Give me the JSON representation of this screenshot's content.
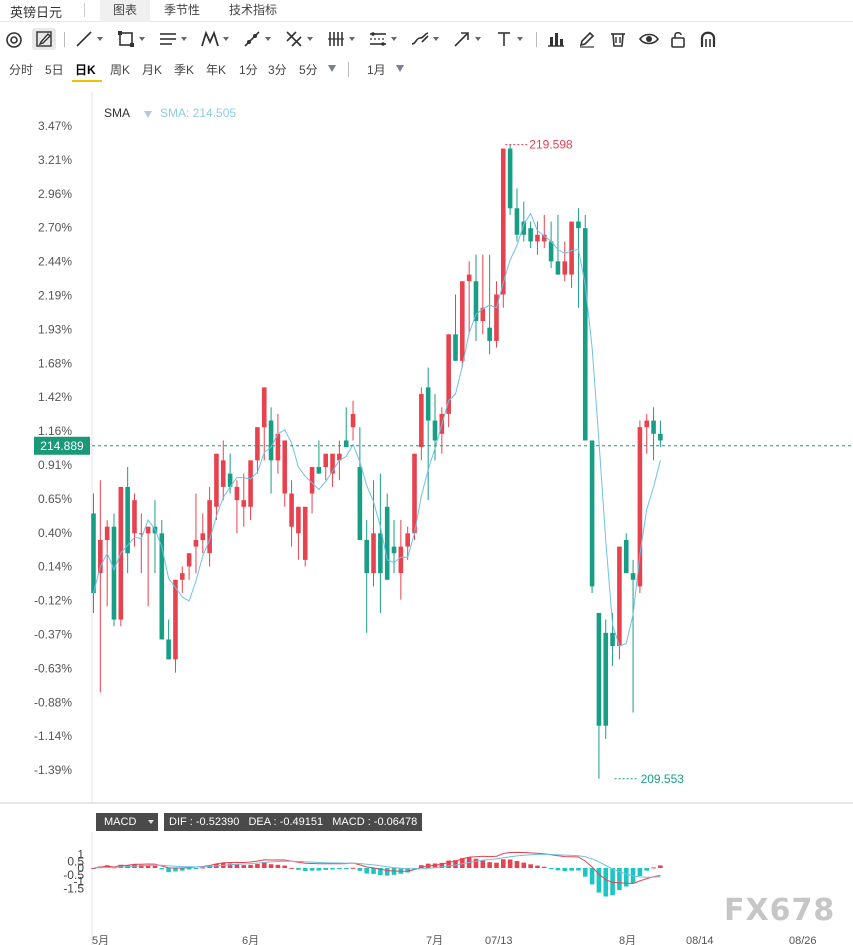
{
  "header": {
    "title": "英镑日元",
    "tabs": [
      "图表",
      "季节性",
      "技术指标"
    ],
    "active_tab": 0
  },
  "toolbar": {
    "icons": [
      "circle-tool-icon",
      "pen-icon",
      "line-icon",
      "rect-icon",
      "hlines-icon",
      "pattern-icon",
      "trendline-icon",
      "cross-icon",
      "vbars-icon",
      "channel-icon",
      "brush-icon",
      "arrow-icon",
      "text-icon",
      "barchart-icon",
      "pencil-icon",
      "trash-icon",
      "eye-icon",
      "lock-icon",
      "magnet-icon"
    ]
  },
  "periods": {
    "items": [
      "分时",
      "5日",
      "日K",
      "周K",
      "月K",
      "季K",
      "年K",
      "1分",
      "3分",
      "5分"
    ],
    "active": 2,
    "range": "1月"
  },
  "indicator": {
    "name": "SMA",
    "value_label": "SMA: 214.505"
  },
  "price_label": "214.889",
  "macd": {
    "select_label": "MACD",
    "values": "DIF : -0.52390   DEA : -0.49151   MACD : -0.06478"
  },
  "watermark": "FX678",
  "colors": {
    "up": "#e8424f",
    "down": "#199e86",
    "sma": "#6ec1e6",
    "dif": "#e8424f",
    "dea": "#6ec1e6",
    "price_tag": "#1a9978"
  },
  "chart_data": {
    "type": "candlestick",
    "y_axis_labels": [
      "3.47%",
      "3.21%",
      "2.96%",
      "2.70%",
      "2.44%",
      "2.19%",
      "1.93%",
      "1.68%",
      "1.42%",
      "1.16%",
      "0.91%",
      "0.65%",
      "0.40%",
      "0.14%",
      "-0.12%",
      "-0.37%",
      "-0.63%",
      "-0.88%",
      "-1.14%",
      "-1.39%"
    ],
    "x_axis_labels": [
      "5月",
      "6月",
      "7月",
      "07/13",
      "8月",
      "08/14",
      "08/26"
    ],
    "max_annotation": "219.598",
    "min_annotation": "209.553",
    "current_price": 214.889,
    "candles_pct": [
      [
        0.55,
        0.7,
        -0.2,
        -0.05
      ],
      [
        0.1,
        0.8,
        -0.8,
        0.35
      ],
      [
        0.35,
        0.5,
        -0.15,
        0.45
      ],
      [
        0.45,
        0.55,
        -0.3,
        -0.25
      ],
      [
        -0.25,
        0.6,
        -0.3,
        0.75
      ],
      [
        0.75,
        0.9,
        0.1,
        0.25
      ],
      [
        0.4,
        0.7,
        0.3,
        0.65
      ],
      [
        0.4,
        0.55,
        0.1,
        0.4
      ],
      [
        0.4,
        0.45,
        -0.15,
        0.45
      ],
      [
        0.45,
        0.65,
        0.1,
        0.4
      ],
      [
        0.4,
        0.5,
        0.0,
        -0.4
      ],
      [
        -0.4,
        -0.25,
        -0.5,
        -0.55
      ],
      [
        -0.55,
        -0.45,
        -0.65,
        0.05
      ],
      [
        0.05,
        0.15,
        -0.05,
        0.1
      ],
      [
        0.15,
        0.25,
        0.05,
        0.25
      ],
      [
        0.3,
        0.7,
        0.1,
        0.35
      ],
      [
        0.35,
        0.55,
        0.25,
        0.4
      ],
      [
        0.25,
        0.75,
        0.15,
        0.65
      ],
      [
        0.6,
        1.0,
        0.5,
        1.0
      ],
      [
        0.75,
        1.1,
        0.65,
        0.95
      ],
      [
        0.85,
        1.0,
        0.7,
        0.75
      ],
      [
        0.65,
        0.8,
        0.4,
        0.75
      ],
      [
        0.6,
        0.85,
        0.45,
        0.65
      ],
      [
        0.6,
        0.95,
        0.5,
        0.95
      ],
      [
        0.95,
        1.1,
        0.85,
        1.2
      ],
      [
        1.2,
        1.4,
        0.95,
        1.5
      ],
      [
        1.25,
        1.35,
        0.7,
        0.95
      ],
      [
        0.95,
        1.3,
        0.85,
        1.15
      ],
      [
        0.7,
        1.1,
        0.6,
        1.1
      ],
      [
        0.45,
        0.8,
        0.3,
        0.7
      ],
      [
        0.4,
        0.6,
        0.2,
        0.6
      ],
      [
        0.2,
        0.6,
        0.15,
        0.6
      ],
      [
        0.7,
        0.9,
        0.55,
        0.9
      ],
      [
        0.9,
        1.1,
        0.85,
        0.85
      ],
      [
        0.9,
        1.0,
        0.8,
        1.0
      ],
      [
        0.85,
        1.0,
        0.75,
        1.0
      ],
      [
        0.95,
        1.1,
        0.8,
        1.0
      ],
      [
        1.1,
        1.35,
        1.05,
        1.05
      ],
      [
        1.2,
        1.4,
        1.1,
        1.3
      ],
      [
        0.9,
        1.2,
        0.4,
        0.35
      ],
      [
        0.35,
        0.5,
        -0.35,
        0.1
      ],
      [
        0.1,
        0.8,
        0.0,
        0.4
      ],
      [
        0.4,
        0.85,
        -0.2,
        0.1
      ],
      [
        0.6,
        0.7,
        0.25,
        0.05
      ],
      [
        0.3,
        0.5,
        0.1,
        0.25
      ],
      [
        0.1,
        0.5,
        -0.1,
        0.3
      ],
      [
        0.3,
        0.45,
        0.2,
        0.4
      ],
      [
        0.4,
        0.95,
        0.35,
        1.0
      ],
      [
        1.05,
        1.5,
        0.95,
        1.45
      ],
      [
        1.5,
        1.65,
        0.65,
        1.25
      ],
      [
        1.25,
        1.45,
        0.95,
        1.1
      ],
      [
        1.15,
        1.35,
        1.0,
        1.3
      ],
      [
        1.3,
        1.55,
        1.2,
        1.9
      ],
      [
        1.9,
        2.2,
        1.7,
        1.7
      ],
      [
        1.7,
        2.3,
        1.65,
        2.3
      ],
      [
        2.3,
        2.45,
        1.9,
        2.35
      ],
      [
        2.3,
        2.5,
        1.85,
        2.0
      ],
      [
        2.0,
        2.5,
        1.9,
        2.1
      ],
      [
        1.95,
        2.5,
        1.75,
        1.85
      ],
      [
        1.85,
        2.3,
        1.8,
        2.2
      ],
      [
        2.2,
        2.9,
        2.1,
        3.3
      ],
      [
        3.3,
        3.33,
        2.8,
        2.85
      ],
      [
        2.85,
        3.0,
        2.6,
        2.65
      ],
      [
        2.75,
        2.9,
        2.6,
        2.65
      ],
      [
        2.7,
        2.75,
        2.55,
        2.6
      ],
      [
        2.6,
        2.75,
        2.5,
        2.65
      ],
      [
        2.6,
        2.8,
        2.55,
        2.65
      ],
      [
        2.6,
        2.75,
        2.4,
        2.45
      ],
      [
        2.45,
        2.8,
        2.4,
        2.35
      ],
      [
        2.35,
        2.6,
        2.3,
        2.45
      ],
      [
        2.35,
        2.6,
        2.25,
        2.75
      ],
      [
        2.75,
        2.85,
        2.1,
        2.7
      ],
      [
        2.7,
        2.8,
        1.1,
        1.1
      ],
      [
        1.1,
        1.1,
        -0.05,
        0.0
      ],
      [
        -0.2,
        -0.3,
        -1.45,
        -1.05
      ],
      [
        -0.35,
        -0.25,
        -1.15,
        -1.05
      ],
      [
        -0.35,
        -0.2,
        -0.6,
        -0.45
      ],
      [
        -0.45,
        -0.3,
        -0.55,
        0.3
      ],
      [
        0.35,
        0.4,
        0.2,
        0.1
      ],
      [
        0.1,
        0.2,
        -0.95,
        0.05
      ],
      [
        0.0,
        1.25,
        -0.05,
        1.2
      ],
      [
        1.2,
        1.3,
        1.0,
        1.25
      ],
      [
        1.25,
        1.35,
        0.95,
        1.15
      ],
      [
        1.15,
        1.25,
        1.05,
        1.1
      ]
    ]
  }
}
